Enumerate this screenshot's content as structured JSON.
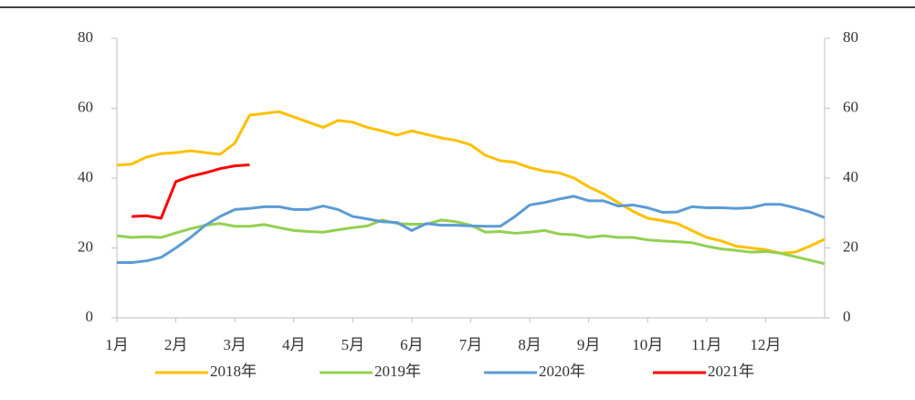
{
  "chart_data": {
    "type": "line",
    "categories": [
      "1月",
      null,
      null,
      null,
      "2月",
      null,
      null,
      null,
      "3月",
      null,
      null,
      null,
      "4月",
      null,
      null,
      null,
      "5月",
      null,
      null,
      null,
      "6月",
      null,
      null,
      null,
      "7月",
      null,
      null,
      null,
      "8月",
      null,
      null,
      null,
      "9月",
      null,
      null,
      null,
      "10月",
      null,
      null,
      null,
      "11月",
      null,
      null,
      null,
      "12月",
      null,
      null,
      null,
      null
    ],
    "series": [
      {
        "name": "2018年",
        "color": "#ffc000",
        "values": [
          43.7,
          44,
          46,
          47,
          47.3,
          47.8,
          47.3,
          46.8,
          50,
          58,
          58.5,
          59,
          57.5,
          56,
          54.5,
          56.5,
          56,
          54.5,
          53.5,
          52.3,
          53.5,
          52.5,
          51.5,
          50.8,
          49.5,
          46.5,
          45,
          44.5,
          43,
          42,
          41.5,
          40,
          37.5,
          35.5,
          33,
          30.5,
          28.5,
          27.8,
          27,
          25,
          23,
          22,
          20.5,
          20,
          19.5,
          18.5,
          18.8,
          20.5,
          22.5
        ]
      },
      {
        "name": "2019年",
        "color": "#92d050",
        "values": [
          23.5,
          23,
          23.2,
          23,
          24.3,
          25.5,
          26.5,
          27,
          26.2,
          26.2,
          26.7,
          25.8,
          25,
          24.7,
          24.5,
          25.2,
          25.8,
          26.3,
          28,
          27,
          26.8,
          26.8,
          28,
          27.5,
          26.5,
          24.5,
          24.7,
          24.2,
          24.5,
          25,
          24,
          23.8,
          23,
          23.5,
          23,
          23,
          22.3,
          22,
          21.8,
          21.5,
          20.5,
          19.7,
          19.3,
          18.8,
          19,
          18.5,
          17.5,
          16.5,
          15.5
        ]
      },
      {
        "name": "2020年",
        "color": "#5b9bd5",
        "values": [
          15.8,
          15.8,
          16.3,
          17.3,
          20,
          23,
          26.5,
          29,
          31,
          31.3,
          31.8,
          31.8,
          31,
          31,
          32,
          31,
          29,
          28.3,
          27.5,
          27.3,
          25,
          27,
          26.5,
          26.5,
          26.3,
          26.2,
          26.2,
          29,
          32.3,
          33,
          34,
          34.8,
          33.5,
          33.5,
          32,
          32.3,
          31.5,
          30.2,
          30.3,
          31.8,
          31.5,
          31.5,
          31.3,
          31.5,
          32.5,
          32.5,
          31.5,
          30.3,
          28.7
        ]
      },
      {
        "name": "2021年",
        "color": "#ff0000",
        "values": [
          null,
          29,
          29.2,
          28.5,
          39,
          40.5,
          41.5,
          42.7,
          43.5,
          43.8,
          null,
          null,
          null,
          null,
          null,
          null,
          null,
          null,
          null,
          null,
          null,
          null,
          null,
          null,
          null,
          null,
          null,
          null,
          null,
          null,
          null,
          null,
          null,
          null,
          null,
          null,
          null,
          null,
          null,
          null,
          null,
          null,
          null,
          null,
          null,
          null,
          null,
          null,
          null
        ]
      }
    ],
    "ylim": [
      0,
      80
    ],
    "yticks": [
      0,
      20,
      40,
      60,
      80
    ],
    "y2lim": [
      0,
      80
    ],
    "y2ticks": [
      0,
      20,
      40,
      60,
      80
    ]
  }
}
